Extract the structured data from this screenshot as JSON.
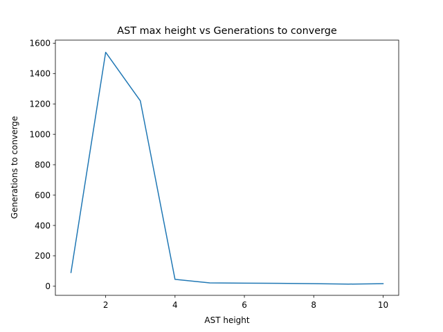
{
  "chart_data": {
    "type": "line",
    "title": "AST max height vs Generations to converge",
    "xlabel": "AST height",
    "ylabel": "Generations to converge",
    "xlim": [
      0.55,
      10.45
    ],
    "ylim": [
      -60,
      1620
    ],
    "xticks": [
      2,
      4,
      6,
      8,
      10
    ],
    "yticks": [
      0,
      200,
      400,
      600,
      800,
      1000,
      1200,
      1400,
      1600
    ],
    "grid": false,
    "series": [
      {
        "color": "#1f77b4",
        "x": [
          1,
          2,
          3,
          4,
          5,
          6,
          7,
          8,
          9,
          10
        ],
        "y": [
          90,
          1540,
          1220,
          45,
          22,
          20,
          19,
          17,
          14,
          17
        ]
      }
    ]
  }
}
